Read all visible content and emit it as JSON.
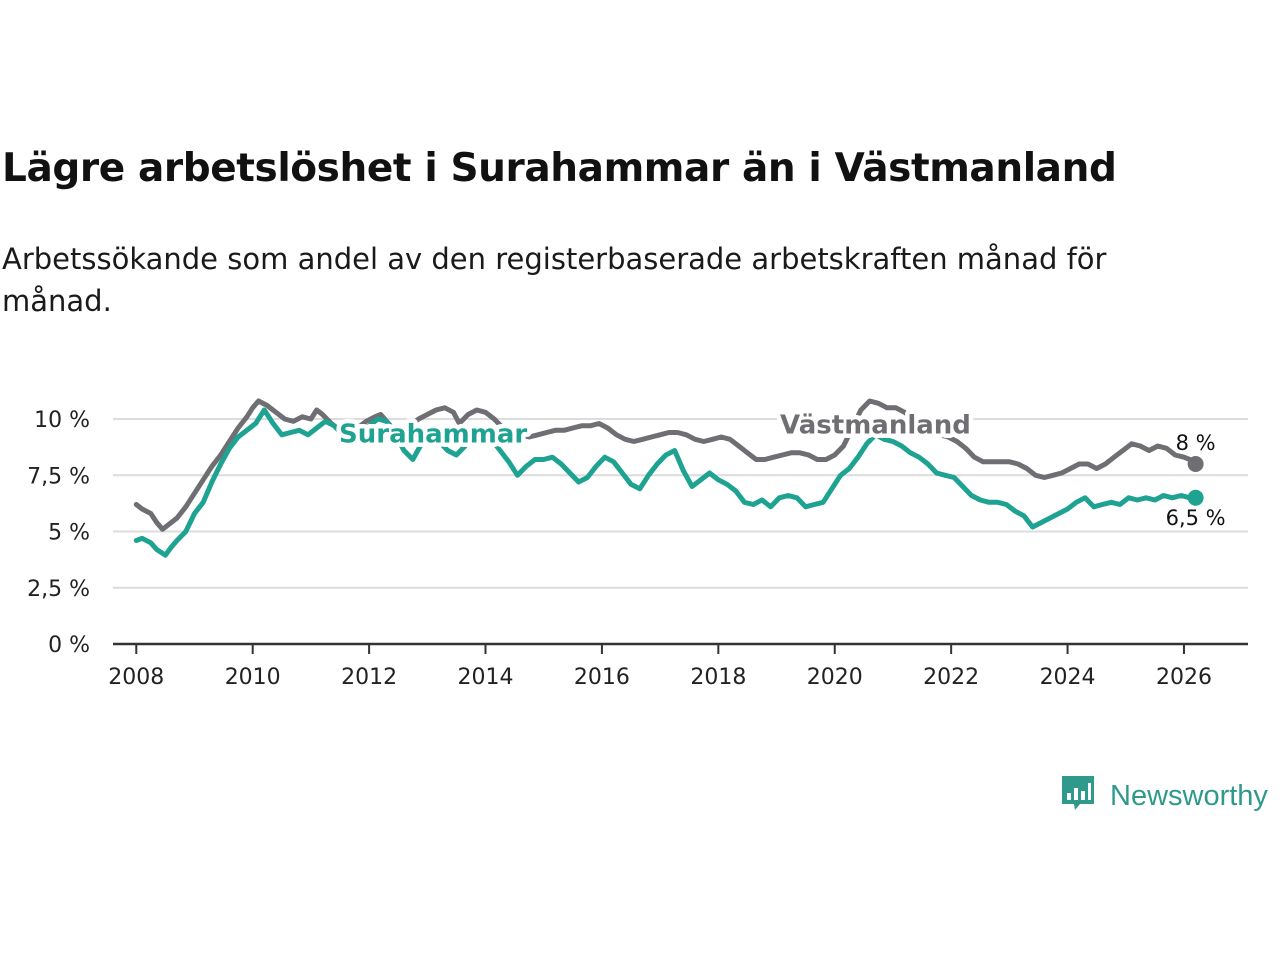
{
  "title": "Lägre arbetslöshet i Surahammar än i Västmanland",
  "subtitle": "Arbetssökande som andel av den registerbaserade arbetskraften månad för månad.",
  "brand": {
    "name": "Newsworthy",
    "icon": "newsworthy-chart-logo-icon",
    "color": "#2f9a8c"
  },
  "chart_data": {
    "type": "line",
    "title": "Lägre arbetslöshet i Surahammar än i Västmanland",
    "xlabel": "",
    "ylabel": "",
    "xlim": [
      2007.6,
      2027.1
    ],
    "ylim": [
      0,
      10
    ],
    "x_ticks": [
      2008,
      2010,
      2012,
      2014,
      2016,
      2018,
      2020,
      2022,
      2024,
      2026
    ],
    "x_tick_labels": [
      "2008",
      "2010",
      "2012",
      "2014",
      "2016",
      "2018",
      "2020",
      "2022",
      "2024",
      "2026"
    ],
    "y_ticks": [
      0,
      2.5,
      5,
      7.5,
      10
    ],
    "y_tick_labels": [
      "0 %",
      "2,5 %",
      "5 %",
      "7,5 %",
      "10 %"
    ],
    "grid": true,
    "series": [
      {
        "name": "Västmanland",
        "color": "#6f6e73",
        "end_label": "8 %",
        "points": [
          [
            2008.0,
            6.2
          ],
          [
            2008.1,
            6.0
          ],
          [
            2008.25,
            5.8
          ],
          [
            2008.35,
            5.4
          ],
          [
            2008.45,
            5.1
          ],
          [
            2008.55,
            5.3
          ],
          [
            2008.7,
            5.6
          ],
          [
            2008.85,
            6.1
          ],
          [
            2009.0,
            6.7
          ],
          [
            2009.15,
            7.3
          ],
          [
            2009.3,
            7.9
          ],
          [
            2009.45,
            8.4
          ],
          [
            2009.6,
            9.0
          ],
          [
            2009.75,
            9.6
          ],
          [
            2009.9,
            10.1
          ],
          [
            2010.0,
            10.5
          ],
          [
            2010.1,
            10.8
          ],
          [
            2010.25,
            10.6
          ],
          [
            2010.4,
            10.3
          ],
          [
            2010.55,
            10.0
          ],
          [
            2010.7,
            9.9
          ],
          [
            2010.85,
            10.1
          ],
          [
            2011.0,
            10.0
          ],
          [
            2011.1,
            10.4
          ],
          [
            2011.2,
            10.2
          ],
          [
            2011.35,
            9.8
          ],
          [
            2011.5,
            9.5
          ],
          [
            2011.65,
            9.4
          ],
          [
            2011.8,
            9.6
          ],
          [
            2011.95,
            9.9
          ],
          [
            2012.1,
            10.1
          ],
          [
            2012.2,
            10.2
          ],
          [
            2012.3,
            9.9
          ],
          [
            2012.4,
            9.6
          ],
          [
            2012.55,
            9.3
          ],
          [
            2012.7,
            9.7
          ],
          [
            2012.85,
            10.0
          ],
          [
            2013.0,
            10.2
          ],
          [
            2013.15,
            10.4
          ],
          [
            2013.3,
            10.5
          ],
          [
            2013.45,
            10.3
          ],
          [
            2013.55,
            9.8
          ],
          [
            2013.7,
            10.2
          ],
          [
            2013.85,
            10.4
          ],
          [
            2014.0,
            10.3
          ],
          [
            2014.15,
            10.0
          ],
          [
            2014.3,
            9.6
          ],
          [
            2014.45,
            9.5
          ],
          [
            2014.6,
            9.3
          ],
          [
            2014.75,
            9.2
          ],
          [
            2014.9,
            9.3
          ],
          [
            2015.05,
            9.4
          ],
          [
            2015.2,
            9.5
          ],
          [
            2015.35,
            9.5
          ],
          [
            2015.5,
            9.6
          ],
          [
            2015.65,
            9.7
          ],
          [
            2015.8,
            9.7
          ],
          [
            2015.95,
            9.8
          ],
          [
            2016.1,
            9.6
          ],
          [
            2016.25,
            9.3
          ],
          [
            2016.4,
            9.1
          ],
          [
            2016.55,
            9.0
          ],
          [
            2016.7,
            9.1
          ],
          [
            2016.85,
            9.2
          ],
          [
            2017.0,
            9.3
          ],
          [
            2017.15,
            9.4
          ],
          [
            2017.3,
            9.4
          ],
          [
            2017.45,
            9.3
          ],
          [
            2017.6,
            9.1
          ],
          [
            2017.75,
            9.0
          ],
          [
            2017.9,
            9.1
          ],
          [
            2018.05,
            9.2
          ],
          [
            2018.2,
            9.1
          ],
          [
            2018.35,
            8.8
          ],
          [
            2018.5,
            8.5
          ],
          [
            2018.65,
            8.2
          ],
          [
            2018.8,
            8.2
          ],
          [
            2018.95,
            8.3
          ],
          [
            2019.1,
            8.4
          ],
          [
            2019.25,
            8.5
          ],
          [
            2019.4,
            8.5
          ],
          [
            2019.55,
            8.4
          ],
          [
            2019.7,
            8.2
          ],
          [
            2019.85,
            8.2
          ],
          [
            2020.0,
            8.4
          ],
          [
            2020.15,
            8.8
          ],
          [
            2020.3,
            9.6
          ],
          [
            2020.45,
            10.4
          ],
          [
            2020.6,
            10.8
          ],
          [
            2020.75,
            10.7
          ],
          [
            2020.9,
            10.5
          ],
          [
            2021.05,
            10.5
          ],
          [
            2021.2,
            10.3
          ],
          [
            2021.35,
            10.0
          ],
          [
            2021.5,
            9.7
          ],
          [
            2021.65,
            9.4
          ],
          [
            2021.8,
            9.3
          ],
          [
            2021.95,
            9.2
          ],
          [
            2022.1,
            9.0
          ],
          [
            2022.25,
            8.7
          ],
          [
            2022.4,
            8.3
          ],
          [
            2022.55,
            8.1
          ],
          [
            2022.7,
            8.1
          ],
          [
            2022.85,
            8.1
          ],
          [
            2023.0,
            8.1
          ],
          [
            2023.15,
            8.0
          ],
          [
            2023.3,
            7.8
          ],
          [
            2023.45,
            7.5
          ],
          [
            2023.6,
            7.4
          ],
          [
            2023.75,
            7.5
          ],
          [
            2023.9,
            7.6
          ],
          [
            2024.05,
            7.8
          ],
          [
            2024.2,
            8.0
          ],
          [
            2024.35,
            8.0
          ],
          [
            2024.5,
            7.8
          ],
          [
            2024.65,
            8.0
          ],
          [
            2024.8,
            8.3
          ],
          [
            2024.95,
            8.6
          ],
          [
            2025.1,
            8.9
          ],
          [
            2025.25,
            8.8
          ],
          [
            2025.4,
            8.6
          ],
          [
            2025.55,
            8.8
          ],
          [
            2025.7,
            8.7
          ],
          [
            2025.85,
            8.4
          ],
          [
            2026.0,
            8.3
          ],
          [
            2026.1,
            8.2
          ],
          [
            2026.2,
            8.0
          ]
        ]
      },
      {
        "name": "Surahammar",
        "color": "#1ea392",
        "end_label": "6,5 %",
        "points": [
          [
            2008.0,
            4.6
          ],
          [
            2008.1,
            4.7
          ],
          [
            2008.25,
            4.5
          ],
          [
            2008.35,
            4.2
          ],
          [
            2008.5,
            3.95
          ],
          [
            2008.6,
            4.3
          ],
          [
            2008.7,
            4.6
          ],
          [
            2008.85,
            5.0
          ],
          [
            2009.0,
            5.8
          ],
          [
            2009.15,
            6.3
          ],
          [
            2009.3,
            7.2
          ],
          [
            2009.45,
            8.0
          ],
          [
            2009.6,
            8.7
          ],
          [
            2009.75,
            9.2
          ],
          [
            2009.9,
            9.5
          ],
          [
            2010.05,
            9.8
          ],
          [
            2010.2,
            10.4
          ],
          [
            2010.35,
            9.8
          ],
          [
            2010.5,
            9.3
          ],
          [
            2010.65,
            9.4
          ],
          [
            2010.8,
            9.5
          ],
          [
            2010.95,
            9.3
          ],
          [
            2011.1,
            9.6
          ],
          [
            2011.25,
            9.9
          ],
          [
            2011.4,
            9.7
          ],
          [
            2011.55,
            9.3
          ],
          [
            2011.7,
            8.9
          ],
          [
            2011.85,
            9.4
          ],
          [
            2012.0,
            9.7
          ],
          [
            2012.15,
            10.0
          ],
          [
            2012.3,
            9.9
          ],
          [
            2012.45,
            9.3
          ],
          [
            2012.6,
            8.6
          ],
          [
            2012.75,
            8.2
          ],
          [
            2012.9,
            8.9
          ],
          [
            2013.05,
            9.3
          ],
          [
            2013.2,
            9.0
          ],
          [
            2013.35,
            8.6
          ],
          [
            2013.5,
            8.4
          ],
          [
            2013.65,
            8.8
          ],
          [
            2013.8,
            9.3
          ],
          [
            2013.95,
            9.4
          ],
          [
            2014.1,
            9.1
          ],
          [
            2014.25,
            8.6
          ],
          [
            2014.4,
            8.1
          ],
          [
            2014.55,
            7.5
          ],
          [
            2014.7,
            7.9
          ],
          [
            2014.85,
            8.2
          ],
          [
            2015.0,
            8.2
          ],
          [
            2015.15,
            8.3
          ],
          [
            2015.3,
            8.0
          ],
          [
            2015.45,
            7.6
          ],
          [
            2015.6,
            7.2
          ],
          [
            2015.75,
            7.4
          ],
          [
            2015.9,
            7.9
          ],
          [
            2016.05,
            8.3
          ],
          [
            2016.2,
            8.1
          ],
          [
            2016.35,
            7.6
          ],
          [
            2016.5,
            7.1
          ],
          [
            2016.65,
            6.9
          ],
          [
            2016.8,
            7.5
          ],
          [
            2016.95,
            8.0
          ],
          [
            2017.1,
            8.4
          ],
          [
            2017.25,
            8.6
          ],
          [
            2017.4,
            7.7
          ],
          [
            2017.55,
            7.0
          ],
          [
            2017.7,
            7.3
          ],
          [
            2017.85,
            7.6
          ],
          [
            2018.0,
            7.3
          ],
          [
            2018.15,
            7.1
          ],
          [
            2018.3,
            6.8
          ],
          [
            2018.45,
            6.3
          ],
          [
            2018.6,
            6.2
          ],
          [
            2018.75,
            6.4
          ],
          [
            2018.9,
            6.1
          ],
          [
            2019.05,
            6.5
          ],
          [
            2019.2,
            6.6
          ],
          [
            2019.35,
            6.5
          ],
          [
            2019.5,
            6.1
          ],
          [
            2019.65,
            6.2
          ],
          [
            2019.8,
            6.3
          ],
          [
            2019.95,
            6.9
          ],
          [
            2020.1,
            7.5
          ],
          [
            2020.25,
            7.8
          ],
          [
            2020.4,
            8.3
          ],
          [
            2020.55,
            8.9
          ],
          [
            2020.7,
            9.3
          ],
          [
            2020.85,
            9.1
          ],
          [
            2021.0,
            9.0
          ],
          [
            2021.15,
            8.8
          ],
          [
            2021.3,
            8.5
          ],
          [
            2021.45,
            8.3
          ],
          [
            2021.6,
            8.0
          ],
          [
            2021.75,
            7.6
          ],
          [
            2021.9,
            7.5
          ],
          [
            2022.05,
            7.4
          ],
          [
            2022.2,
            7.0
          ],
          [
            2022.35,
            6.6
          ],
          [
            2022.5,
            6.4
          ],
          [
            2022.65,
            6.3
          ],
          [
            2022.8,
            6.3
          ],
          [
            2022.95,
            6.2
          ],
          [
            2023.1,
            5.9
          ],
          [
            2023.25,
            5.7
          ],
          [
            2023.4,
            5.2
          ],
          [
            2023.55,
            5.4
          ],
          [
            2023.7,
            5.6
          ],
          [
            2023.85,
            5.8
          ],
          [
            2024.0,
            6.0
          ],
          [
            2024.15,
            6.3
          ],
          [
            2024.3,
            6.5
          ],
          [
            2024.45,
            6.1
          ],
          [
            2024.6,
            6.2
          ],
          [
            2024.75,
            6.3
          ],
          [
            2024.9,
            6.2
          ],
          [
            2025.05,
            6.5
          ],
          [
            2025.2,
            6.4
          ],
          [
            2025.35,
            6.5
          ],
          [
            2025.5,
            6.4
          ],
          [
            2025.65,
            6.6
          ],
          [
            2025.8,
            6.5
          ],
          [
            2025.95,
            6.6
          ],
          [
            2026.1,
            6.5
          ],
          [
            2026.2,
            6.5
          ]
        ]
      }
    ],
    "annotations": [
      {
        "text": "Surahammar",
        "series": "Surahammar",
        "x": 2013.1,
        "y": 8.95
      },
      {
        "text": "Västmanland",
        "series": "Västmanland",
        "x": 2020.7,
        "y": 9.35
      }
    ]
  }
}
